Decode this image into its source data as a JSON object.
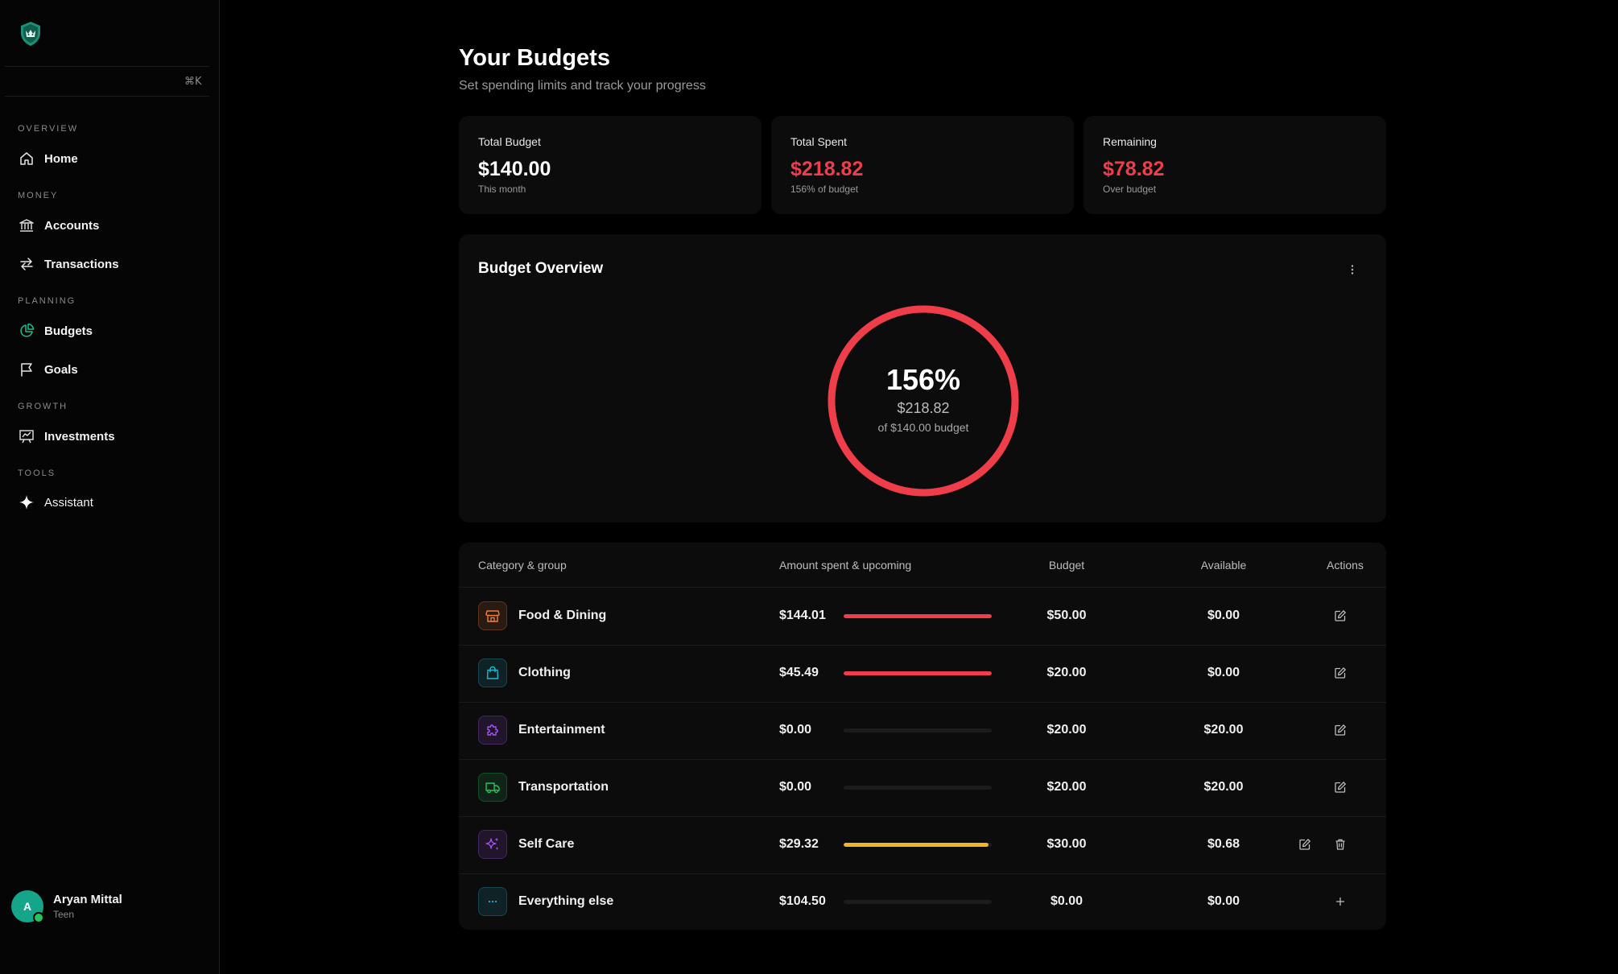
{
  "sidebar": {
    "search": {
      "placeholder": "",
      "shortcut": "⌘K"
    },
    "sections": [
      {
        "label": "OVERVIEW",
        "items": [
          {
            "label": "Home",
            "icon": "home-icon"
          }
        ]
      },
      {
        "label": "MONEY",
        "items": [
          {
            "label": "Accounts",
            "icon": "bank-icon"
          },
          {
            "label": "Transactions",
            "icon": "arrows-swap-icon"
          }
        ]
      },
      {
        "label": "PLANNING",
        "items": [
          {
            "label": "Budgets",
            "icon": "pie-chart-icon",
            "active": true
          },
          {
            "label": "Goals",
            "icon": "flag-icon"
          }
        ]
      },
      {
        "label": "GROWTH",
        "items": [
          {
            "label": "Investments",
            "icon": "chart-board-icon"
          }
        ]
      },
      {
        "label": "TOOLS",
        "items": [
          {
            "label": "Assistant",
            "icon": "sparkle-icon"
          }
        ]
      }
    ],
    "user": {
      "initial": "A",
      "name": "Aryan Mittal",
      "role": "Teen"
    }
  },
  "header": {
    "title": "Your Budgets",
    "subtitle": "Set spending limits and track your progress"
  },
  "stats": [
    {
      "label": "Total Budget",
      "value": "$140.00",
      "caption": "This month",
      "value_color": "#ffffff"
    },
    {
      "label": "Total Spent",
      "value": "$218.82",
      "caption": "156% of budget",
      "value_color": "#ef3e4a"
    },
    {
      "label": "Remaining",
      "value": "$78.82",
      "caption": "Over budget",
      "value_color": "#ef3e4a"
    }
  ],
  "overview": {
    "title": "Budget Overview",
    "percent_text": "156%",
    "spent_text": "$218.82",
    "of_budget_text": "of $140.00 budget",
    "ring_color": "#ef3e4a",
    "progress": 1.0
  },
  "table": {
    "headers": [
      "Category & group",
      "Amount spent & upcoming",
      "Budget",
      "Available",
      "Actions"
    ],
    "rows": [
      {
        "name": "Food & Dining",
        "icon": "storefront-icon",
        "icon_color": "#f0803c",
        "spent": "$144.01",
        "budget": "$50.00",
        "available": "$0.00",
        "progress": 1.0,
        "bar_color": "#ef3e4a",
        "actions": [
          "edit"
        ]
      },
      {
        "name": "Clothing",
        "icon": "shopping-bag-icon",
        "icon_color": "#22b8cf",
        "spent": "$45.49",
        "budget": "$20.00",
        "available": "$0.00",
        "progress": 1.0,
        "bar_color": "#ef3e4a",
        "actions": [
          "edit"
        ]
      },
      {
        "name": "Entertainment",
        "icon": "puzzle-icon",
        "icon_color": "#a855f7",
        "spent": "$0.00",
        "budget": "$20.00",
        "available": "$20.00",
        "progress": 0,
        "bar_color": "#ef3e4a",
        "actions": [
          "edit"
        ]
      },
      {
        "name": "Transportation",
        "icon": "truck-icon",
        "icon_color": "#22c55e",
        "spent": "$0.00",
        "budget": "$20.00",
        "available": "$20.00",
        "progress": 0,
        "bar_color": "#ef3e4a",
        "actions": [
          "edit"
        ]
      },
      {
        "name": "Self Care",
        "icon": "sparkles-icon",
        "icon_color": "#a855f7",
        "spent": "$29.32",
        "budget": "$30.00",
        "available": "$0.68",
        "progress": 0.977,
        "bar_color": "#f0b429",
        "actions": [
          "edit",
          "delete"
        ]
      },
      {
        "name": "Everything else",
        "icon": "more-horizontal-icon",
        "icon_color": "#22b8cf",
        "spent": "$104.50",
        "budget": "$0.00",
        "available": "$0.00",
        "progress": 0,
        "bar_color": "#ef3e4a",
        "actions": [
          "add"
        ]
      }
    ]
  }
}
